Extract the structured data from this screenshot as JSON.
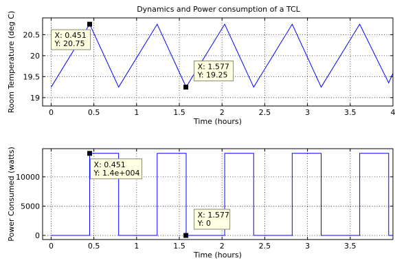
{
  "chart_data": [
    {
      "type": "line",
      "title": "Dynamics and Power consumption of a TCL",
      "xlabel": "Time (hours)",
      "ylabel": "Room Temperature (deg C)",
      "xlim": [
        -0.1,
        4
      ],
      "ylim": [
        18.8,
        20.9
      ],
      "xticks": [
        0,
        0.5,
        1,
        1.5,
        2,
        2.5,
        3,
        3.5,
        4
      ],
      "xtick_labels": [
        "0",
        "0.5",
        "1",
        "1.5",
        "2",
        "2.5",
        "3",
        "3.5",
        "4"
      ],
      "yticks": [
        19,
        19.5,
        20,
        20.5
      ],
      "ytick_labels": [
        "19",
        "19.5",
        "20",
        "20.5"
      ],
      "grid": true,
      "series": [
        {
          "color": "#0000ff",
          "x": [
            0,
            0.451,
            0.79,
            1.241,
            1.58,
            2.031,
            2.37,
            2.821,
            3.16,
            3.611,
            3.95,
            4.0
          ],
          "y": [
            19.25,
            20.75,
            19.25,
            20.75,
            19.25,
            20.75,
            19.25,
            20.75,
            19.25,
            20.75,
            19.35,
            19.58
          ]
        }
      ],
      "annotations": [
        {
          "x": 0.451,
          "y": 20.75,
          "x_text": "X: 0.451",
          "y_text": "Y: 20.75"
        },
        {
          "x": 1.577,
          "y": 19.25,
          "x_text": "X: 1.577",
          "y_text": "Y: 19.25"
        }
      ]
    },
    {
      "type": "line",
      "title": "",
      "xlabel": "Time (hours)",
      "ylabel": "Power Consumed (watts)",
      "xlim": [
        -0.1,
        4
      ],
      "ylim": [
        -700,
        14800
      ],
      "xticks": [
        0,
        0.5,
        1,
        1.5,
        2,
        2.5,
        3,
        3.5
      ],
      "xtick_labels": [
        "0",
        "0.5",
        "1",
        "1.5",
        "2",
        "2.5",
        "3",
        "3.5"
      ],
      "yticks": [
        0,
        5000,
        10000
      ],
      "ytick_labels": [
        "0",
        "5000",
        "10000"
      ],
      "grid": true,
      "series": [
        {
          "color": "#0000ff",
          "x": [
            0,
            0.451,
            0.451,
            0.79,
            0.79,
            1.241,
            1.241,
            1.58,
            1.58,
            2.031,
            2.031,
            2.37,
            2.37,
            2.821,
            2.821,
            3.16,
            3.16,
            3.611,
            3.611,
            3.95,
            3.95,
            4.0
          ],
          "y": [
            0,
            0,
            14000,
            14000,
            0,
            0,
            14000,
            14000,
            0,
            0,
            14000,
            14000,
            0,
            0,
            14000,
            14000,
            0,
            0,
            14000,
            14000,
            0,
            0
          ]
        }
      ],
      "annotations": [
        {
          "x": 0.451,
          "y": 14000,
          "x_text": "X: 0.451",
          "y_text": "Y: 1.4e+004"
        },
        {
          "x": 1.577,
          "y": 0,
          "x_text": "X: 1.577",
          "y_text": "Y: 0"
        }
      ]
    }
  ]
}
